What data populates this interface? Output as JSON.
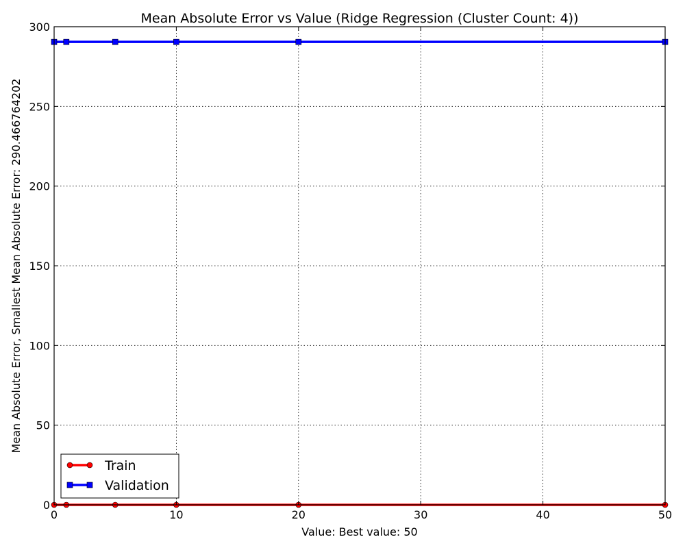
{
  "chart_data": {
    "type": "line",
    "title": "Mean Absolute Error vs Value (Ridge Regression (Cluster Count: 4))",
    "xlabel": "Value: Best value: 50",
    "ylabel": "Mean Absolute Error, Smallest Mean Absolute Error: 290.466764202",
    "xlim": [
      0,
      50
    ],
    "ylim": [
      0,
      300
    ],
    "xticks": [
      0,
      10,
      20,
      30,
      40,
      50
    ],
    "yticks": [
      0,
      50,
      100,
      150,
      200,
      250,
      300
    ],
    "grid": true,
    "legend_position": "lower-left",
    "x": [
      0,
      1,
      5,
      10,
      20,
      50
    ],
    "series": [
      {
        "name": "Train",
        "values": [
          0,
          0,
          0,
          0,
          0,
          0
        ],
        "color": "#ff0000",
        "marker": "circle"
      },
      {
        "name": "Validation",
        "values": [
          290.47,
          290.47,
          290.47,
          290.47,
          290.47,
          290.47
        ],
        "color": "#0000ff",
        "marker": "square"
      }
    ]
  }
}
